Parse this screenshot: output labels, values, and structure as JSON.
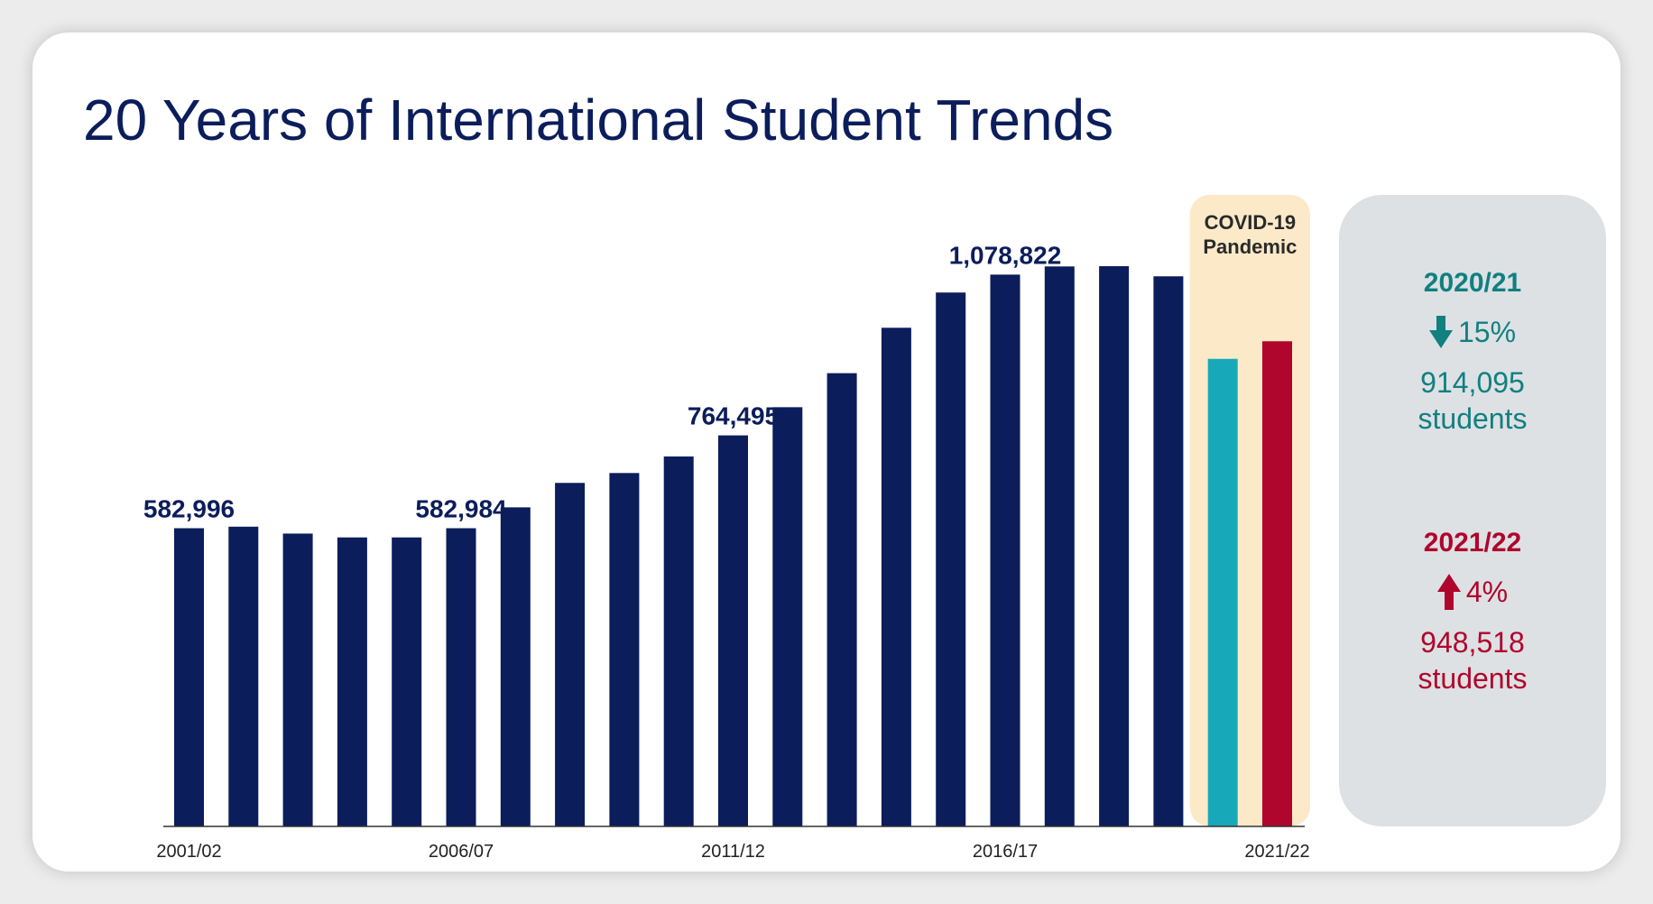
{
  "title": "20 Years of International Student Trends",
  "colors": {
    "title": "#0b1d5b",
    "bar": "#0b1d5b",
    "covid_2020": "#17a9b9",
    "covid_2021": "#b0052c",
    "covid_band": "#fbe9c8",
    "panel": "#dde1e4",
    "stat_2020": "#127f80",
    "stat_2021": "#b0052c"
  },
  "covid_band": {
    "label_line1": "COVID-19",
    "label_line2": "Pandemic"
  },
  "chart_data": {
    "type": "bar",
    "title": "20 Years of International Student Trends",
    "xlabel": "",
    "ylabel": "",
    "ylim": [
      0,
      1270000
    ],
    "grid": false,
    "categories": [
      "2001/02",
      "2002/03",
      "2003/04",
      "2004/05",
      "2005/06",
      "2006/07",
      "2007/08",
      "2008/09",
      "2009/10",
      "2010/11",
      "2011/12",
      "2012/13",
      "2013/14",
      "2014/15",
      "2015/16",
      "2016/17",
      "2017/18",
      "2018/19",
      "2019/20",
      "2020/21",
      "2021/22"
    ],
    "values": [
      582996,
      586000,
      572500,
      565000,
      565000,
      582984,
      623800,
      671600,
      690900,
      723300,
      764495,
      819600,
      886100,
      974900,
      1043800,
      1078822,
      1094800,
      1095300,
      1075500,
      914095,
      948518
    ],
    "tick_labels": [
      "2001/02",
      "2006/07",
      "2011/12",
      "2016/17",
      "2021/22"
    ],
    "data_labels": [
      {
        "category": "2001/02",
        "text": "582,996"
      },
      {
        "category": "2006/07",
        "text": "582,984"
      },
      {
        "category": "2011/12",
        "text": "764,495"
      },
      {
        "category": "2016/17",
        "text": "1,078,822"
      }
    ],
    "highlighted_categories": [
      "2020/21",
      "2021/22"
    ]
  },
  "panel": {
    "stat_2020": {
      "year": "2020/21",
      "direction": "down",
      "change": "15%",
      "count_line1": "914,095",
      "count_line2": "students"
    },
    "stat_2021": {
      "year": "2021/22",
      "direction": "up",
      "change": "4%",
      "count_line1": "948,518",
      "count_line2": "students"
    }
  }
}
